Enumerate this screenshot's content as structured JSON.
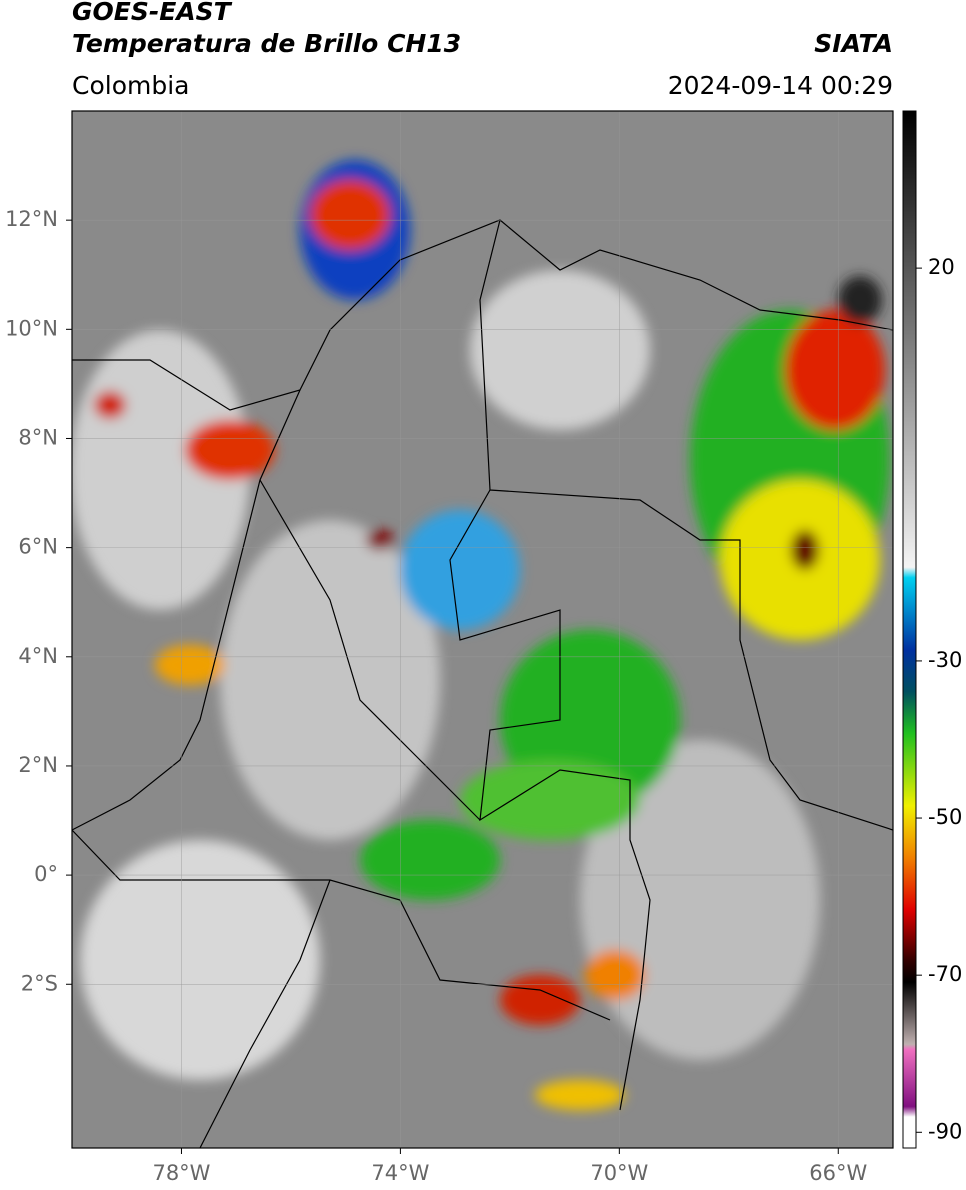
{
  "header": {
    "title": "GOES-EAST",
    "subtitle": "Temperatura de Brillo CH13",
    "source": "SIATA",
    "region": "Colombia",
    "timestamp": "2024-09-14 00:29"
  },
  "map": {
    "xlim": [
      -80,
      -65
    ],
    "ylim": [
      -5,
      14
    ],
    "xticks": [
      {
        "value": -78,
        "label": "78°W"
      },
      {
        "value": -74,
        "label": "74°W"
      },
      {
        "value": -70,
        "label": "70°W"
      },
      {
        "value": -66,
        "label": "66°W"
      }
    ],
    "yticks": [
      {
        "value": 12,
        "label": "12°N"
      },
      {
        "value": 10,
        "label": "10°N"
      },
      {
        "value": 8,
        "label": "8°N"
      },
      {
        "value": 6,
        "label": "6°N"
      },
      {
        "value": 4,
        "label": "4°N"
      },
      {
        "value": 2,
        "label": "2°N"
      },
      {
        "value": 0,
        "label": "0°"
      },
      {
        "value": -2,
        "label": "2°S"
      }
    ],
    "grid": true
  },
  "colorbar": {
    "clim": [
      -92,
      40
    ],
    "ticks": [
      20,
      -30,
      -50,
      -70,
      -90
    ]
  }
}
